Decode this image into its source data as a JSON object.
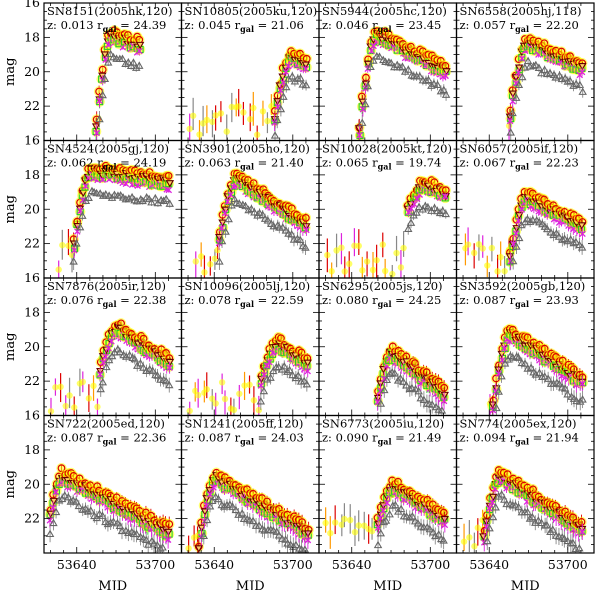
{
  "chart_data": {
    "type": "scatter",
    "xlabel": "MJD",
    "ylabel": "mag",
    "xlim": [
      53615,
      53720
    ],
    "ylim": [
      24,
      16
    ],
    "y_inverted": true,
    "xticks": [
      53640,
      53700
    ],
    "yticks": [
      16,
      18,
      20,
      22
    ],
    "grid": false,
    "legend": "none",
    "band_colors": {
      "u": "#888888",
      "g": "#22cc22",
      "r": "#dd0000",
      "i": "#ff9900",
      "z": "#dd22dd",
      "gal": "#ffff00"
    },
    "panels": [
      {
        "name": "SN8151(2005hk,120)",
        "z": "z: 0.013",
        "r_gal_label": "r",
        "r_gal_sub": "gal",
        "r_gal": "= 24.39",
        "peak_mjd": 53665,
        "peak_mag": 17.6,
        "start": 53655,
        "end": 53690,
        "rise": 1.0,
        "decay": 0.025
      },
      {
        "name": "SN10805(2005ku,120)",
        "z": "z: 0.045",
        "r_gal_label": "r",
        "r_gal_sub": "gal",
        "r_gal": "= 21.06",
        "peak_mjd": 53698,
        "peak_mag": 18.8,
        "start": 53620,
        "end": 53712,
        "rise": 0.5,
        "decay": 0.03
      },
      {
        "name": "SN5944(2005hc,120)",
        "z": "z: 0.046",
        "r_gal_label": "r",
        "r_gal_sub": "gal",
        "r_gal": "= 23.45",
        "peak_mjd": 53658,
        "peak_mag": 17.5,
        "start": 53645,
        "end": 53712,
        "rise": 0.8,
        "decay": 0.04
      },
      {
        "name": "SN6558(2005hj,118)",
        "z": "z: 0.057",
        "r_gal_label": "r",
        "r_gal_sub": "gal",
        "r_gal": "= 22.20",
        "peak_mjd": 53668,
        "peak_mag": 18.0,
        "start": 53655,
        "end": 53712,
        "rise": 0.6,
        "decay": 0.035
      },
      {
        "name": "SN4524(2005gj,120)",
        "z": "z: 0.062",
        "r_gal_label": "r",
        "r_gal_sub": "gal",
        "r_gal": "= 24.19",
        "peak_mjd": 53650,
        "peak_mag": 17.5,
        "start": 53625,
        "end": 53712,
        "rise": 0.6,
        "decay": 0.01
      },
      {
        "name": "SN3901(2005ho,120)",
        "z": "z: 0.063",
        "r_gal_label": "r",
        "r_gal_sub": "gal",
        "r_gal": "= 21.40",
        "peak_mjd": 53656,
        "peak_mag": 17.9,
        "start": 53625,
        "end": 53712,
        "rise": 0.5,
        "decay": 0.05
      },
      {
        "name": "SN10028(2005kt,120)",
        "z": "z: 0.065",
        "r_gal_label": "r",
        "r_gal_sub": "gal",
        "r_gal": "= 19.74",
        "peak_mjd": 53695,
        "peak_mag": 18.3,
        "start": 53620,
        "end": 53712,
        "rise": 0.2,
        "decay": 0.03
      },
      {
        "name": "SN6057(2005if,120)",
        "z": "z: 0.067",
        "r_gal_label": "r",
        "r_gal_sub": "gal",
        "r_gal": "= 22.23",
        "peak_mjd": 53668,
        "peak_mag": 19.0,
        "start": 53620,
        "end": 53712,
        "rise": 0.5,
        "decay": 0.04
      },
      {
        "name": "SN7876(2005ir,120)",
        "z": "z: 0.076",
        "r_gal_label": "r",
        "r_gal_sub": "gal",
        "r_gal": "= 22.38",
        "peak_mjd": 53670,
        "peak_mag": 18.6,
        "start": 53620,
        "end": 53712,
        "rise": 0.35,
        "decay": 0.05
      },
      {
        "name": "SN10096(2005lj,120)",
        "z": "z: 0.078",
        "r_gal_label": "r",
        "r_gal_sub": "gal",
        "r_gal": "= 22.59",
        "peak_mjd": 53688,
        "peak_mag": 19.5,
        "start": 53620,
        "end": 53712,
        "rise": 0.3,
        "decay": 0.05
      },
      {
        "name": "SN6295(2005js,120)",
        "z": "z: 0.080",
        "r_gal_label": "r",
        "r_gal_sub": "gal",
        "r_gal": "= 24.25",
        "peak_mjd": 53670,
        "peak_mag": 20.0,
        "start": 53660,
        "end": 53712,
        "rise": 0.5,
        "decay": 0.06
      },
      {
        "name": "SN3592(2005gb,120)",
        "z": "z: 0.087",
        "r_gal_label": "r",
        "r_gal_sub": "gal",
        "r_gal": "= 23.93",
        "peak_mjd": 53655,
        "peak_mag": 18.9,
        "start": 53640,
        "end": 53712,
        "rise": 0.6,
        "decay": 0.05
      },
      {
        "name": "SN722(2005ed,120)",
        "z": "z: 0.087",
        "r_gal_label": "r",
        "r_gal_sub": "gal",
        "r_gal": "= 22.36",
        "peak_mjd": 53628,
        "peak_mag": 19.2,
        "start": 53620,
        "end": 53712,
        "rise": 0.6,
        "decay": 0.04
      },
      {
        "name": "SN1241(2005ff,120)",
        "z": "z: 0.087",
        "r_gal_label": "r",
        "r_gal_sub": "gal",
        "r_gal": "= 24.03",
        "peak_mjd": 53640,
        "peak_mag": 19.3,
        "start": 53620,
        "end": 53712,
        "rise": 0.6,
        "decay": 0.045
      },
      {
        "name": "SN6773(2005iu,120)",
        "z": "z: 0.090",
        "r_gal_label": "r",
        "r_gal_sub": "gal",
        "r_gal": "= 21.49",
        "peak_mjd": 53672,
        "peak_mag": 19.8,
        "start": 53620,
        "end": 53712,
        "rise": 0.3,
        "decay": 0.05
      },
      {
        "name": "SN774(2005ex,120)",
        "z": "z: 0.094",
        "r_gal_label": "r",
        "r_gal_sub": "gal",
        "r_gal": "= 21.94",
        "peak_mjd": 53648,
        "peak_mag": 19.2,
        "start": 53620,
        "end": 53712,
        "rise": 0.5,
        "decay": 0.05
      }
    ]
  }
}
